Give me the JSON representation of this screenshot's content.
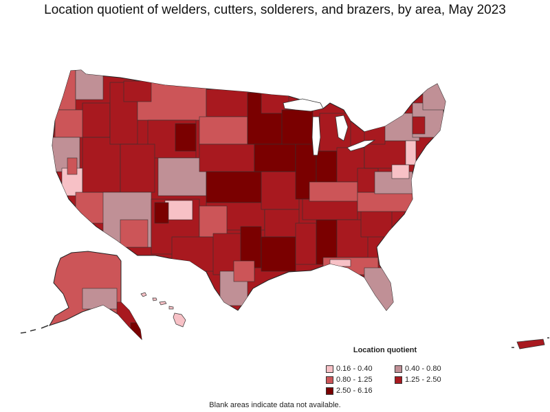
{
  "title": "Location quotient of welders, cutters, solderers, and brazers, by area, May 2023",
  "legend": {
    "title": "Location quotient",
    "items": [
      {
        "label": "0.16 - 0.40",
        "color": "#f7c1c6"
      },
      {
        "label": "0.40 - 0.80",
        "color": "#c09096"
      },
      {
        "label": "0.80 - 1.25",
        "color": "#cc5558"
      },
      {
        "label": "1.25 - 2.50",
        "color": "#a8191f"
      },
      {
        "label": "2.50 - 6.16",
        "color": "#7a0000"
      }
    ]
  },
  "footnote": "Blank areas indicate data not available."
}
